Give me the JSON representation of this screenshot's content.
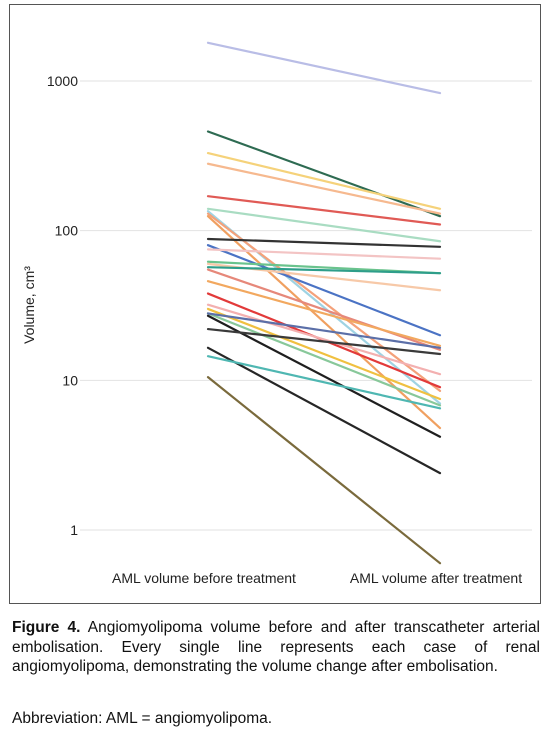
{
  "chart_data": {
    "type": "line",
    "yscale": "log",
    "ylabel": "Volume, cm³",
    "ylim": [
      0.55,
      2200
    ],
    "yticks": [
      1,
      10,
      100,
      1000
    ],
    "ytick_labels": [
      "1",
      "10",
      "100",
      "1000"
    ],
    "grid": "horizontal",
    "categories": [
      "AML volume before treatment",
      "AML volume after treatment"
    ],
    "series": [
      {
        "values": [
          1800,
          830
        ],
        "color": "#b9bde6"
      },
      {
        "values": [
          460,
          125
        ],
        "color": "#2e6b52"
      },
      {
        "values": [
          330,
          140
        ],
        "color": "#f5d27a"
      },
      {
        "values": [
          280,
          130
        ],
        "color": "#f6b98f"
      },
      {
        "values": [
          170,
          110
        ],
        "color": "#e05a55"
      },
      {
        "values": [
          140,
          85
        ],
        "color": "#a9dcc2"
      },
      {
        "values": [
          135,
          7
        ],
        "color": "#9fd3e3"
      },
      {
        "values": [
          130,
          8.5
        ],
        "color": "#f4a17a"
      },
      {
        "values": [
          125,
          4.8
        ],
        "color": "#f0a060"
      },
      {
        "values": [
          88,
          78
        ],
        "color": "#333333"
      },
      {
        "values": [
          80,
          20
        ],
        "color": "#4b73c4"
      },
      {
        "values": [
          75,
          65
        ],
        "color": "#f3c4c4"
      },
      {
        "values": [
          62,
          52
        ],
        "color": "#6ac38d"
      },
      {
        "values": [
          60,
          40
        ],
        "color": "#f7c9a8"
      },
      {
        "values": [
          57,
          52
        ],
        "color": "#2e9e8a"
      },
      {
        "values": [
          55,
          16
        ],
        "color": "#e6887a"
      },
      {
        "values": [
          46,
          17
        ],
        "color": "#f2a85f"
      },
      {
        "values": [
          38,
          9
        ],
        "color": "#e23a3a"
      },
      {
        "values": [
          32,
          11
        ],
        "color": "#f3b0b0"
      },
      {
        "values": [
          30,
          7.5
        ],
        "color": "#f0c040"
      },
      {
        "values": [
          28,
          6.8
        ],
        "color": "#88c89a"
      },
      {
        "values": [
          28,
          16.5
        ],
        "color": "#5b6fa8"
      },
      {
        "values": [
          27,
          4.2
        ],
        "color": "#1f1f1f"
      },
      {
        "values": [
          22,
          15
        ],
        "color": "#3a3a3a"
      },
      {
        "values": [
          16.5,
          2.4
        ],
        "color": "#262626"
      },
      {
        "values": [
          14.5,
          6.5
        ],
        "color": "#4fb7b2"
      },
      {
        "values": [
          10.5,
          0.6
        ],
        "color": "#7a6a3c"
      }
    ]
  },
  "caption": {
    "label": "Figure 4.",
    "text": "Angiomyolipoma volume before and after transcatheter arterial embolisation. Every single line represents each case of renal angiomyolipoma, demonstrating the volume change after embolisation."
  },
  "abbreviation": "Abbreviation: AML = angiomyolipoma."
}
